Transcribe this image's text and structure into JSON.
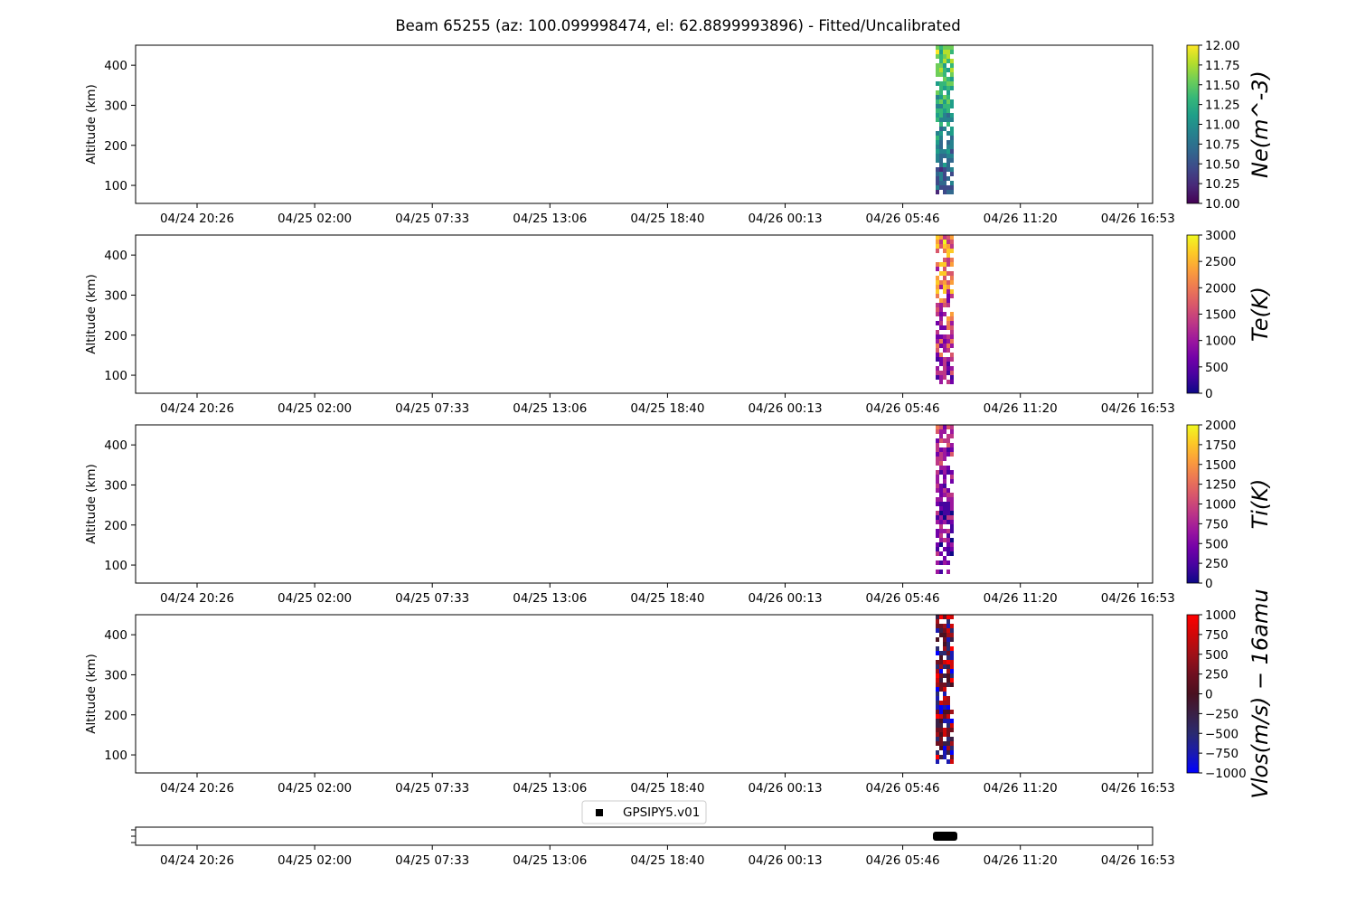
{
  "title": "Beam 65255 (az: 100.099998474, el: 62.8899993896) - Fitted/Uncalibrated",
  "x_tick_labels": [
    "04/24 20:26",
    "04/25 02:00",
    "04/25 07:33",
    "04/25 13:06",
    "04/25 18:40",
    "04/26 00:13",
    "04/26 05:46",
    "04/26 11:20",
    "04/26 16:53"
  ],
  "legend_label": "GPSIPY5.v01",
  "chart_data": [
    {
      "type": "heatmap",
      "ylabel": "Altitude (km)",
      "yticks": [
        100,
        200,
        300,
        400
      ],
      "ylim": [
        55,
        450
      ],
      "colormap": "viridis",
      "colorbar": {
        "label": "Ne(m^-3)",
        "ticks": [
          "10.00",
          "10.25",
          "10.50",
          "10.75",
          "11.00",
          "11.25",
          "11.50",
          "11.75",
          "12.00"
        ],
        "range": [
          10.0,
          12.0
        ]
      },
      "data_window": [
        "04/26 07:20",
        "04/26 08:05"
      ],
      "altitude_range": [
        85,
        450
      ]
    },
    {
      "type": "heatmap",
      "ylabel": "Altitude (km)",
      "yticks": [
        100,
        200,
        300,
        400
      ],
      "ylim": [
        55,
        450
      ],
      "colormap": "plasma",
      "colorbar": {
        "label": "Te(K)",
        "ticks": [
          "0",
          "500",
          "1000",
          "1500",
          "2000",
          "2500",
          "3000"
        ],
        "range": [
          0,
          3000
        ]
      },
      "data_window": [
        "04/26 07:20",
        "04/26 08:05"
      ],
      "altitude_range": [
        85,
        450
      ]
    },
    {
      "type": "heatmap",
      "ylabel": "Altitude (km)",
      "yticks": [
        100,
        200,
        300,
        400
      ],
      "ylim": [
        55,
        450
      ],
      "colormap": "plasma",
      "colorbar": {
        "label": "Ti(K)",
        "ticks": [
          "0",
          "250",
          "500",
          "750",
          "1000",
          "1250",
          "1500",
          "1750",
          "2000"
        ],
        "range": [
          0,
          2000
        ]
      },
      "data_window": [
        "04/26 07:20",
        "04/26 08:05"
      ],
      "altitude_range": [
        85,
        450
      ]
    },
    {
      "type": "heatmap",
      "ylabel": "Altitude (km)",
      "yticks": [
        100,
        200,
        300,
        400
      ],
      "ylim": [
        55,
        450
      ],
      "colormap": "blue-black-red",
      "colorbar": {
        "label": "Vlos(m/s) − 16amu",
        "ticks": [
          "−1000",
          "−750",
          "−500",
          "−250",
          "0",
          "250",
          "500",
          "750",
          "1000"
        ],
        "range": [
          -1000,
          1000
        ]
      },
      "data_window": [
        "04/26 07:20",
        "04/26 08:05"
      ],
      "altitude_range": [
        85,
        450
      ]
    },
    {
      "type": "scatter",
      "series": [
        {
          "name": "GPSIPY5.v01",
          "x": [
            "04/26 07:20",
            "04/26 08:05"
          ],
          "marker": "square",
          "color": "#000000"
        }
      ]
    }
  ]
}
